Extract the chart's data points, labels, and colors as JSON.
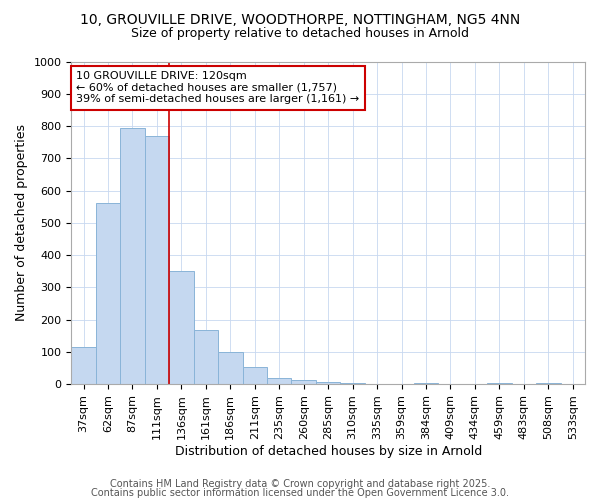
{
  "title_line1": "10, GROUVILLE DRIVE, WOODTHORPE, NOTTINGHAM, NG5 4NN",
  "title_line2": "Size of property relative to detached houses in Arnold",
  "categories": [
    "37sqm",
    "62sqm",
    "87sqm",
    "111sqm",
    "136sqm",
    "161sqm",
    "186sqm",
    "211sqm",
    "235sqm",
    "260sqm",
    "285sqm",
    "310sqm",
    "335sqm",
    "359sqm",
    "384sqm",
    "409sqm",
    "434sqm",
    "459sqm",
    "483sqm",
    "508sqm",
    "533sqm"
  ],
  "values": [
    115,
    560,
    795,
    770,
    350,
    168,
    100,
    53,
    18,
    13,
    7,
    5,
    0,
    0,
    5,
    0,
    0,
    5,
    0,
    5,
    0
  ],
  "bar_color": "#c5d8f0",
  "bar_edge_color": "#8ab4d8",
  "bar_linewidth": 0.7,
  "red_line_x": 3.5,
  "annotation_line1": "10 GROUVILLE DRIVE: 120sqm",
  "annotation_line2": "← 60% of detached houses are smaller (1,757)",
  "annotation_line3": "39% of semi-detached houses are larger (1,161) →",
  "annotation_box_color": "white",
  "annotation_box_edge_color": "#cc0000",
  "annotation_fontsize": 8,
  "ylabel": "Number of detached properties",
  "xlabel": "Distribution of detached houses by size in Arnold",
  "ylim": [
    0,
    1000
  ],
  "yticks": [
    0,
    100,
    200,
    300,
    400,
    500,
    600,
    700,
    800,
    900,
    1000
  ],
  "footer_line1": "Contains HM Land Registry data © Crown copyright and database right 2025.",
  "footer_line2": "Contains public sector information licensed under the Open Government Licence 3.0.",
  "background_color": "#ffffff",
  "plot_background": "#ffffff",
  "grid_color": "#c8d8f0",
  "title_fontsize": 10,
  "subtitle_fontsize": 9,
  "axis_label_fontsize": 9,
  "tick_fontsize": 8,
  "footer_fontsize": 7
}
